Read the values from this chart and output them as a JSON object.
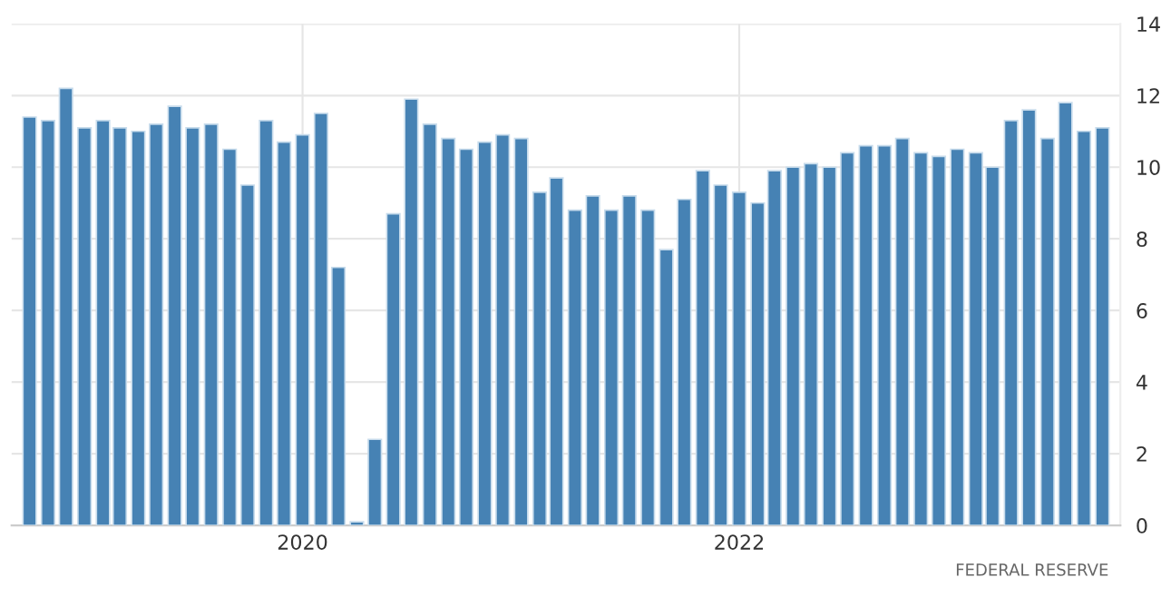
{
  "chart_data": {
    "type": "bar",
    "x": [
      "2018-10",
      "2018-11",
      "2018-12",
      "2019-01",
      "2019-02",
      "2019-03",
      "2019-04",
      "2019-05",
      "2019-06",
      "2019-07",
      "2019-08",
      "2019-09",
      "2019-10",
      "2019-11",
      "2019-12",
      "2020-01",
      "2020-02",
      "2020-03",
      "2020-04",
      "2020-05",
      "2020-06",
      "2020-07",
      "2020-08",
      "2020-09",
      "2020-10",
      "2020-11",
      "2020-12",
      "2021-01",
      "2021-02",
      "2021-03",
      "2021-04",
      "2021-05",
      "2021-06",
      "2021-07",
      "2021-08",
      "2021-09",
      "2021-10",
      "2021-11",
      "2021-12",
      "2022-01",
      "2022-02",
      "2022-03",
      "2022-04",
      "2022-05",
      "2022-06",
      "2022-07",
      "2022-08",
      "2022-09",
      "2022-10",
      "2022-11",
      "2022-12",
      "2023-01",
      "2023-02",
      "2023-03",
      "2023-04",
      "2023-05",
      "2023-06",
      "2023-07",
      "2023-08",
      "2023-09"
    ],
    "series": [
      {
        "color": "#4682b4",
        "values": [
          11.4,
          11.3,
          12.2,
          11.1,
          11.3,
          11.1,
          11.0,
          11.2,
          11.7,
          11.1,
          11.2,
          10.5,
          9.5,
          11.3,
          10.7,
          10.9,
          11.5,
          7.2,
          0.1,
          2.4,
          8.7,
          11.9,
          11.2,
          10.8,
          10.5,
          10.7,
          10.9,
          10.8,
          9.3,
          9.7,
          8.8,
          9.2,
          8.8,
          9.2,
          8.8,
          7.7,
          9.1,
          9.9,
          9.5,
          9.3,
          9.0,
          9.9,
          10.0,
          10.1,
          10.0,
          10.4,
          10.6,
          10.6,
          10.8,
          10.4,
          10.3,
          10.5,
          10.4,
          10.0,
          11.3,
          11.6,
          10.8,
          11.8,
          11.0,
          11.1
        ]
      }
    ],
    "xlim": [
      "2018-09-01",
      "2023-10-01"
    ],
    "xticks": [
      "2020",
      "2022"
    ],
    "ylim": [
      0,
      14
    ],
    "yticks": [
      0,
      2,
      4,
      6,
      8,
      10,
      12,
      14
    ],
    "grid": true,
    "annotations": [
      "FEDERAL RESERVE"
    ]
  }
}
